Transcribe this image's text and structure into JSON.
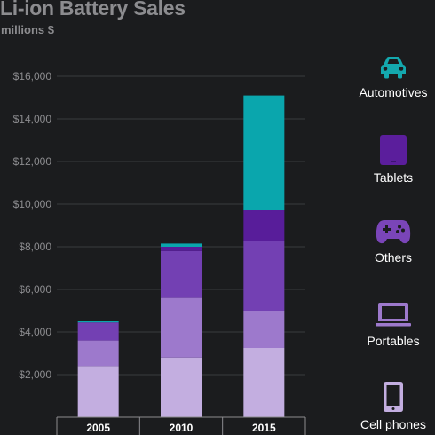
{
  "title": "Li-ion Battery Sales",
  "subtitle": "millions $",
  "chart_data": {
    "type": "bar",
    "stacked": true,
    "title": "Li-ion Battery Sales",
    "ylabel": "millions $",
    "categories": [
      "2005",
      "2010",
      "2015"
    ],
    "yticks": [
      "$2,000",
      "$4,000",
      "$6,000",
      "$8,000",
      "$10,000",
      "$12,000",
      "$14,000",
      "$16,000"
    ],
    "ylim": [
      0,
      16000
    ],
    "grid": true,
    "legend_position": "right",
    "series": [
      {
        "name": "Cell phones",
        "color": "#c3aee0",
        "values": [
          2400,
          2800,
          3250
        ]
      },
      {
        "name": "Portables",
        "color": "#9d79cc",
        "values": [
          1200,
          2800,
          1750
        ]
      },
      {
        "name": "Others",
        "color": "#7340b3",
        "values": [
          850,
          2200,
          3250
        ]
      },
      {
        "name": "Tablets",
        "color": "#581d9a",
        "values": [
          0,
          200,
          1500
        ]
      },
      {
        "name": "Automotives",
        "color": "#0aa6ad",
        "values": [
          50,
          150,
          5350
        ]
      }
    ]
  },
  "legend": [
    {
      "label": "Automotives",
      "icon": "car-icon",
      "color": "#14a8ae"
    },
    {
      "label": "Tablets",
      "icon": "tablet-icon",
      "color": "#5b1e9c"
    },
    {
      "label": "Others",
      "icon": "gamepad-icon",
      "color": "#7a45b8"
    },
    {
      "label": "Portables",
      "icon": "laptop-icon",
      "color": "#9d79cc"
    },
    {
      "label": "Cell phones",
      "icon": "phone-icon",
      "color": "#c3aee0"
    }
  ]
}
